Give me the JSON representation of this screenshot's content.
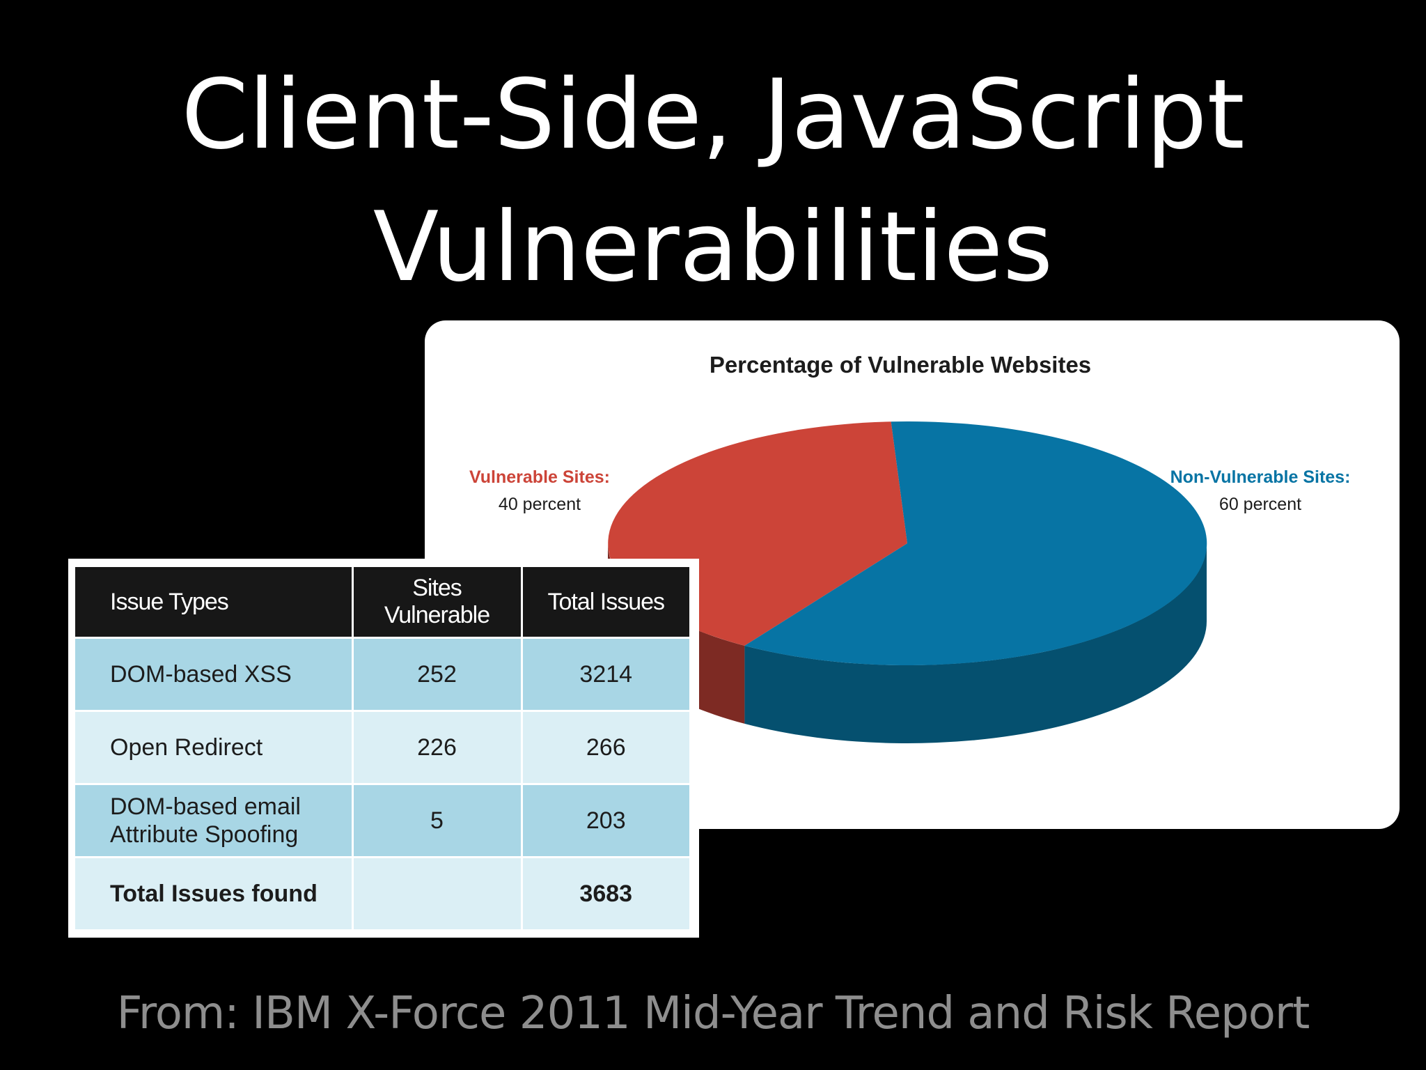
{
  "slide": {
    "title_line1": "Client-Side, JavaScript",
    "title_line2": "Vulnerabilities",
    "source": "From: IBM X-Force 2011 Mid-Year Trend and Risk Report"
  },
  "colors": {
    "vulnerable": "#cc4438",
    "vulnerable_dark": "#7d2a23",
    "non_vulnerable": "#0774a4",
    "non_vulnerable_dark": "#05506f",
    "table_header": "#171717",
    "row_dark": "#a8d6e5",
    "row_light": "#dbeff5"
  },
  "chart_data": [
    {
      "type": "pie",
      "title": "Percentage of Vulnerable Websites",
      "labels": [
        "Vulnerable Sites:",
        "Non-Vulnerable Sites:"
      ],
      "sublabels": [
        "40 percent",
        "60 percent"
      ],
      "values": [
        40,
        60
      ],
      "legend": "labels-beside-slices",
      "style": "3d"
    },
    {
      "type": "table",
      "columns": [
        "Issue Types",
        "Sites Vulnerable",
        "Total Issues"
      ],
      "rows": [
        {
          "issue": "DOM-based XSS",
          "sites": "252",
          "total": "3214"
        },
        {
          "issue": "Open Redirect",
          "sites": "226",
          "total": "266"
        },
        {
          "issue_line1": "DOM-based email",
          "issue_line2": "Attribute Spoofing",
          "sites": "5",
          "total": "203"
        }
      ],
      "total_row": {
        "label": "Total Issues found",
        "sites": "",
        "total": "3683"
      }
    }
  ]
}
